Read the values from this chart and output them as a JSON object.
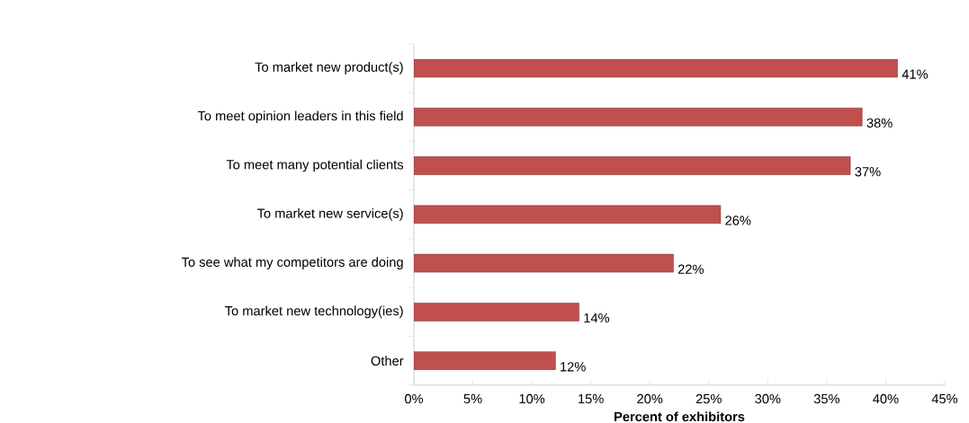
{
  "chart_data": {
    "type": "bar",
    "orientation": "horizontal",
    "categories": [
      "To market new product(s)",
      "To meet opinion leaders in this field",
      "To meet many potential clients",
      "To market new service(s)",
      "To see what my competitors are doing",
      "To market new technology(ies)",
      "Other"
    ],
    "values": [
      41,
      38,
      37,
      26,
      22,
      14,
      12
    ],
    "value_labels": [
      "41%",
      "38%",
      "37%",
      "26%",
      "22%",
      "14%",
      "12%"
    ],
    "color": "#c0504d",
    "xlabel": "Percent of exhibitors",
    "xlim": [
      0,
      45
    ],
    "xticks": [
      {
        "value": 0,
        "label": "0%"
      },
      {
        "value": 5,
        "label": "5%"
      },
      {
        "value": 10,
        "label": "10%"
      },
      {
        "value": 15,
        "label": "15%"
      },
      {
        "value": 20,
        "label": "20%"
      },
      {
        "value": 25,
        "label": "25%"
      },
      {
        "value": 30,
        "label": "30%"
      },
      {
        "value": 35,
        "label": "35%"
      },
      {
        "value": 40,
        "label": "40%"
      },
      {
        "value": 45,
        "label": "45%"
      }
    ],
    "grid": false
  }
}
